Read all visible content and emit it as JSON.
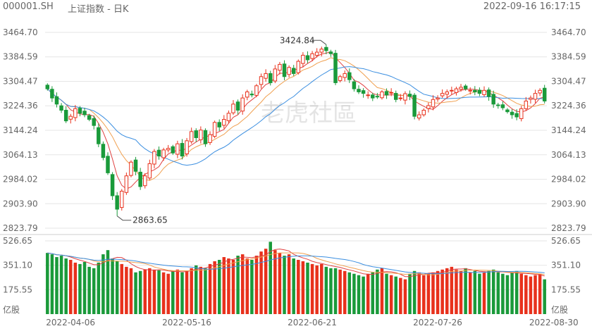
{
  "header": {
    "symbol": "000001.SH",
    "name": "上证指数 - 日K",
    "timestamp": "2022-09-16 16:17:15"
  },
  "watermark": "老虎社區",
  "colors": {
    "up": "#e8311c",
    "down": "#1a9a3a",
    "ma5": "#e04040",
    "ma10": "#f0a050",
    "ma20": "#3a8ee0",
    "grid": "#e6e6e6"
  },
  "chart_data": [
    {
      "type": "candlestick",
      "title": "",
      "y_ticks": [
        "3464.70",
        "3384.59",
        "3304.47",
        "3224.36",
        "3144.24",
        "3064.13",
        "2984.02",
        "2903.90",
        "2823.79"
      ],
      "ylim": [
        2823.79,
        3464.7
      ],
      "x_ticks": [
        "2022-04-06",
        "2022-05-16",
        "2022-06-21",
        "2022-07-26",
        "2022-08-30"
      ],
      "annotations": [
        {
          "label": "3424.84",
          "value": 3424.84,
          "kind": "high"
        },
        {
          "label": "2863.65",
          "value": 2863.65,
          "kind": "low"
        }
      ],
      "close": [
        3280,
        3250,
        3230,
        3210,
        3175,
        3190,
        3215,
        3200,
        3195,
        3180,
        3160,
        3100,
        3055,
        3005,
        2930,
        2886,
        2945,
        2995,
        3040,
        3010,
        2960,
        2995,
        3035,
        3075,
        3060,
        3080,
        3085,
        3070,
        3100,
        3060,
        3110,
        3140,
        3120,
        3145,
        3100,
        3130,
        3170,
        3155,
        3180,
        3200,
        3230,
        3210,
        3250,
        3270,
        3260,
        3290,
        3320,
        3330,
        3300,
        3345,
        3360,
        3320,
        3350,
        3330,
        3370,
        3390,
        3375,
        3395,
        3400,
        3410,
        3405,
        3395,
        3300,
        3320,
        3330,
        3310,
        3280,
        3270,
        3265,
        3260,
        3250,
        3255,
        3270,
        3260,
        3268,
        3245,
        3250,
        3264,
        3255,
        3190,
        3195,
        3210,
        3225,
        3245,
        3250,
        3265,
        3270,
        3275,
        3280,
        3285,
        3280,
        3275,
        3270,
        3265,
        3275,
        3255,
        3230,
        3225,
        3218,
        3205,
        3195,
        3188,
        3215,
        3240,
        3250,
        3265,
        3275,
        3240
      ],
      "volume": [
        440,
        430,
        410,
        420,
        400,
        390,
        370,
        360,
        375,
        340,
        330,
        370,
        430,
        460,
        400,
        380,
        360,
        340,
        330,
        300,
        310,
        320,
        330,
        320,
        315,
        300,
        290,
        310,
        320,
        300,
        310,
        330,
        350,
        340,
        330,
        360,
        380,
        390,
        410,
        400,
        390,
        420,
        430,
        400,
        390,
        420,
        450,
        470,
        520,
        460,
        440,
        420,
        430,
        400,
        390,
        380,
        370,
        360,
        350,
        360,
        340,
        330,
        330,
        320,
        310,
        300,
        290,
        280,
        270,
        290,
        300,
        320,
        330,
        290,
        280,
        270,
        260,
        250,
        290,
        310,
        300,
        280,
        290,
        300,
        310,
        320,
        330,
        340,
        320,
        310,
        330,
        300,
        310,
        290,
        300,
        310,
        320,
        300,
        290,
        280,
        300,
        310,
        290,
        280,
        270,
        280,
        290,
        250
      ],
      "vol_y_ticks": [
        "526.65",
        "351.10",
        "175.55"
      ],
      "vol_ylim": [
        0,
        526.65
      ],
      "unit": "亿股"
    }
  ]
}
